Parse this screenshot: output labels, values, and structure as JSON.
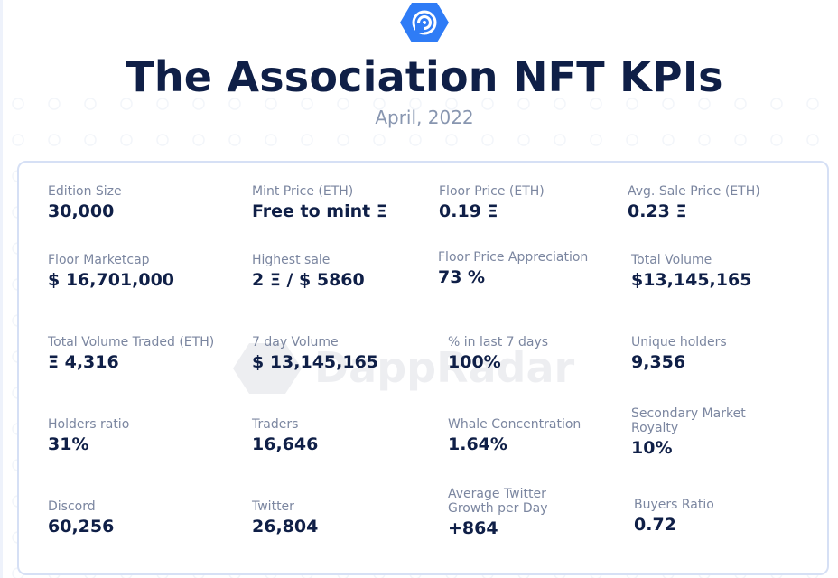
{
  "header": {
    "title": "The Association NFT KPIs",
    "subtitle": "April, 2022"
  },
  "colors": {
    "brand": "#0f1f47",
    "accent": "#2f7cf6",
    "label": "#7b86a0",
    "card_border": "#d6e0f5"
  },
  "watermark": {
    "text": "DappRadar"
  },
  "kpis": [
    {
      "label": "Edition Size",
      "value": "30,000"
    },
    {
      "label": "Mint Price (ETH)",
      "value": "Free to mint Ξ"
    },
    {
      "label": "Floor Price (ETH)",
      "value": "0.19 Ξ"
    },
    {
      "label": "Avg. Sale Price (ETH)",
      "value": "0.23 Ξ"
    },
    {
      "label": "Floor Marketcap",
      "value": "$ 16,701,000"
    },
    {
      "label": "Highest sale",
      "value": "2 Ξ / $ 5860"
    },
    {
      "label": "Floor Price Appreciation",
      "value": "73 %"
    },
    {
      "label": "Total Volume",
      "value": "$13,145,165"
    },
    {
      "label": "Total Volume Traded (ETH)",
      "value": "Ξ 4,316"
    },
    {
      "label": "7 day Volume",
      "value": "$ 13,145,165"
    },
    {
      "label": "% in last 7 days",
      "value": "100%"
    },
    {
      "label": "Unique holders",
      "value": "9,356"
    },
    {
      "label": "Holders ratio",
      "value": "31%"
    },
    {
      "label": "Traders",
      "value": "16,646"
    },
    {
      "label": "Whale Concentration",
      "value": "1.64%"
    },
    {
      "label": "Secondary Market Royalty",
      "value": "10%"
    },
    {
      "label": "Discord",
      "value": "60,256"
    },
    {
      "label": "Twitter",
      "value": "26,804"
    },
    {
      "label": "Average Twitter Growth per Day",
      "value": "+864"
    },
    {
      "label": "Buyers Ratio",
      "value": "0.72"
    }
  ]
}
